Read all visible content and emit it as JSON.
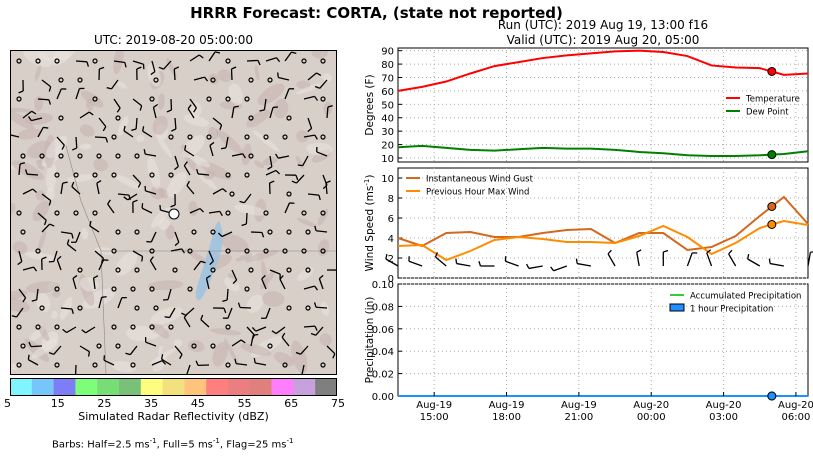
{
  "header": {
    "title": "HRRR Forecast: CORTA, (state not reported)",
    "map_title": "UTC: 2019-08-20 05:00:00",
    "run_line": "Run (UTC): 2019 Aug 19, 13:00 f16",
    "valid_line": "Valid (UTC): 2019 Aug 20, 05:00"
  },
  "colorbar": {
    "label": "Simulated Radar Reflectivity (dBZ)",
    "tick_labels": [
      "5",
      "15",
      "25",
      "35",
      "45",
      "55",
      "65",
      "75"
    ],
    "colors": [
      "#7ff6ff",
      "#76c6fb",
      "#7d7ef5",
      "#7cfe7a",
      "#79dd76",
      "#79c078",
      "#fffd7f",
      "#f2e17d",
      "#ffc47b",
      "#ff7f7f",
      "#ea7e80",
      "#df807d",
      "#ff7efe",
      "#c7a1dc",
      "#7f7f7f"
    ]
  },
  "barbs_note": {
    "prefix": "Barbs: Half=2.5 ms",
    "part2": ", Full=5 ms",
    "part3": ", Flag=25 ms",
    "superscript": "-1"
  },
  "chart_data": [
    {
      "type": "line",
      "ylabel": "Degrees (F)",
      "ylim": [
        7,
        92
      ],
      "yticks": [
        10,
        20,
        30,
        40,
        50,
        60,
        70,
        80,
        90
      ],
      "x_hours": [
        0,
        1,
        2,
        3,
        4,
        5,
        6,
        7,
        8,
        9,
        10,
        11,
        12,
        13,
        14,
        15,
        16,
        17
      ],
      "legend_position": "right",
      "series": [
        {
          "name": "Temperature",
          "color": "#ff0000",
          "values": [
            60,
            63,
            67,
            73,
            78.5,
            81.5,
            84.5,
            86.5,
            88,
            89.5,
            90,
            89,
            86,
            79,
            77.5,
            77,
            72,
            73
          ]
        },
        {
          "name": "Dew Point",
          "color": "#008000",
          "values": [
            18,
            19,
            17.5,
            16,
            15.5,
            16.5,
            17.5,
            17,
            17,
            16,
            14.5,
            13.5,
            12,
            11.5,
            11.5,
            12,
            13,
            15
          ]
        }
      ],
      "marker_hour": 15.5
    },
    {
      "type": "line",
      "ylabel": "Wind Speed (ms",
      "ylabel_sup": "-1",
      "ylim": [
        0,
        11
      ],
      "yticks": [
        0,
        2,
        4,
        6,
        8,
        10
      ],
      "x_hours": [
        0,
        1,
        2,
        3,
        4,
        5,
        6,
        7,
        8,
        9,
        10,
        11,
        12,
        13,
        14,
        15,
        16,
        17
      ],
      "legend_position": "upper left",
      "series": [
        {
          "name": "Instantaneous Wind Gust",
          "color": "#d2691e",
          "values": [
            4,
            3.2,
            4.5,
            4.6,
            4.1,
            4.1,
            4.5,
            4.8,
            4.9,
            3.5,
            4.5,
            4.5,
            2.8,
            3.1,
            4.2,
            6.2,
            8.1,
            5.4
          ]
        },
        {
          "name": "Previous Hour Max Wind",
          "color": "#ff8c00",
          "values": [
            3.2,
            3.3,
            1.8,
            2.7,
            3.8,
            4.1,
            3.9,
            3.6,
            3.6,
            3.5,
            4.2,
            5.2,
            4.1,
            2.4,
            3.5,
            5.0,
            5.7,
            5.3
          ]
        }
      ],
      "marker_hour": 15.5,
      "barb_directions_deg": [
        300,
        290,
        310,
        280,
        270,
        290,
        260,
        250,
        280,
        330,
        350,
        360,
        20,
        340,
        330,
        300,
        280,
        10
      ]
    },
    {
      "type": "line",
      "ylabel": "Precipitation (in)",
      "ylim": [
        0,
        0.1
      ],
      "yticks": [
        "0.00",
        "0.02",
        "0.04",
        "0.06",
        "0.08",
        "0.10"
      ],
      "x_hours": [
        0,
        1,
        2,
        3,
        4,
        5,
        6,
        7,
        8,
        9,
        10,
        11,
        12,
        13,
        14,
        15,
        16,
        17
      ],
      "legend_position": "upper right",
      "series": [
        {
          "name": "Accumulated Precipitation",
          "color": "#32cd32",
          "values": [
            0,
            0,
            0,
            0,
            0,
            0,
            0,
            0,
            0,
            0,
            0,
            0,
            0,
            0,
            0,
            0,
            0,
            0
          ]
        },
        {
          "name": "1 hour Precipitation",
          "color": "#1e90ff",
          "values": [
            0,
            0,
            0,
            0,
            0,
            0,
            0,
            0,
            0,
            0,
            0,
            0,
            0,
            0,
            0,
            0,
            0,
            0
          ]
        }
      ],
      "marker_hour": 15.5
    }
  ],
  "x_axis": {
    "tick_hours": [
      1.5,
      4.5,
      7.5,
      10.5,
      13.5,
      16.5
    ],
    "tick_dates": [
      "Aug-19",
      "Aug-19",
      "Aug-19",
      "Aug-20",
      "Aug-20",
      "Aug-20"
    ],
    "tick_times": [
      "15:00",
      "18:00",
      "21:00",
      "00:00",
      "03:00",
      "06:00"
    ]
  }
}
